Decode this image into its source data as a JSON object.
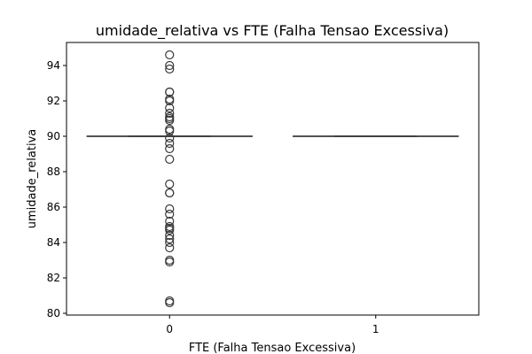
{
  "chart_data": {
    "type": "box",
    "title": "umidade_relativa vs FTE (Falha Tensao Excessiva)",
    "xlabel": "FTE (Falha Tensao Excessiva)",
    "ylabel": "umidade_relativa",
    "categories": [
      "0",
      "1"
    ],
    "ylim": [
      79.9,
      95.3
    ],
    "yticks": [
      80,
      82,
      84,
      86,
      88,
      90,
      92,
      94
    ],
    "grid": false,
    "box_color": "#3a3a3a",
    "boxes": [
      {
        "category": "0",
        "q1": 90.0,
        "median": 90.0,
        "q3": 90.0,
        "whisker_low": 90.0,
        "whisker_high": 90.0,
        "outliers": [
          94.6,
          94.0,
          93.8,
          92.5,
          92.5,
          92.1,
          92.0,
          91.6,
          91.3,
          91.1,
          91.0,
          90.9,
          90.4,
          90.3,
          89.9,
          89.6,
          89.3,
          88.7,
          87.3,
          86.8,
          86.8,
          85.9,
          85.6,
          85.2,
          84.9,
          84.8,
          84.7,
          84.4,
          84.2,
          84.0,
          83.7,
          83.0,
          82.9,
          80.7,
          80.6
        ]
      },
      {
        "category": "1",
        "q1": 90.0,
        "median": 90.0,
        "q3": 90.0,
        "whisker_low": 90.0,
        "whisker_high": 90.0,
        "outliers": []
      }
    ]
  }
}
